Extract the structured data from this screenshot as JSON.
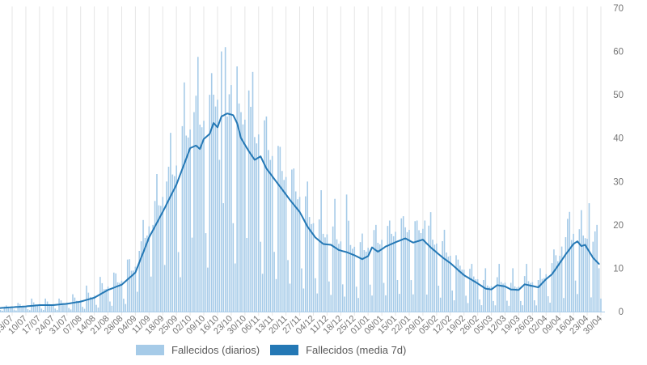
{
  "chart": {
    "legend": {
      "daily_label": "Fallecidos (diarios)",
      "media_label": "Fallecidos (media 7d)"
    }
  },
  "chart_data": {
    "type": "bar+line",
    "title": "",
    "xlabel": "",
    "ylabel": "",
    "y_axis_side": "right",
    "ylim": [
      0,
      70
    ],
    "y_ticks": [
      0,
      10,
      20,
      30,
      40,
      50,
      60,
      70
    ],
    "grid": "vertical-only",
    "legend_position": "bottom",
    "x_tick_labels": [
      "03/07",
      "10/07",
      "17/07",
      "24/07",
      "31/07",
      "07/08",
      "14/08",
      "21/08",
      "28/08",
      "04/09",
      "11/09",
      "18/09",
      "25/09",
      "02/10",
      "09/10",
      "16/10",
      "23/10",
      "30/10",
      "06/11",
      "13/11",
      "20/11",
      "27/11",
      "04/12",
      "11/12",
      "18/12",
      "25/12",
      "01/01",
      "08/01",
      "15/01",
      "22/01",
      "29/01",
      "05/02",
      "12/02",
      "19/02",
      "26/02",
      "05/03",
      "12/03",
      "19/03",
      "26/03",
      "02/04",
      "09/04",
      "16/04",
      "23/04",
      "30/04"
    ],
    "days_per_tick": 7,
    "num_days": 309,
    "series": [
      {
        "name": "Fallecidos (diarios)",
        "type": "bar"
      },
      {
        "name": "Fallecidos (media 7d)",
        "type": "line"
      }
    ],
    "media7d_anchors": [
      [
        0,
        0.8
      ],
      [
        7,
        1.0
      ],
      [
        14,
        1.2
      ],
      [
        21,
        1.5
      ],
      [
        28,
        1.5
      ],
      [
        35,
        1.8
      ],
      [
        42,
        2.3
      ],
      [
        49,
        3.2
      ],
      [
        56,
        5.0
      ],
      [
        63,
        6.2
      ],
      [
        70,
        9.0
      ],
      [
        77,
        17.1
      ],
      [
        84,
        23.0
      ],
      [
        91,
        29.3
      ],
      [
        98,
        37.7
      ],
      [
        101,
        38.3
      ],
      [
        103,
        37.5
      ],
      [
        105,
        39.8
      ],
      [
        108,
        41.0
      ],
      [
        110,
        43.5
      ],
      [
        112,
        42.5
      ],
      [
        114,
        45.0
      ],
      [
        117,
        45.7
      ],
      [
        120,
        45.3
      ],
      [
        122,
        43.5
      ],
      [
        124,
        40.0
      ],
      [
        128,
        37.0
      ],
      [
        131,
        35.0
      ],
      [
        134,
        35.8
      ],
      [
        137,
        33.0
      ],
      [
        142,
        30.0
      ],
      [
        147,
        27.0
      ],
      [
        150,
        25.2
      ],
      [
        154,
        23.0
      ],
      [
        158,
        19.6
      ],
      [
        162,
        17.1
      ],
      [
        166,
        15.6
      ],
      [
        170,
        15.4
      ],
      [
        174,
        14.2
      ],
      [
        178,
        13.7
      ],
      [
        182,
        13.0
      ],
      [
        186,
        12.1
      ],
      [
        189,
        12.8
      ],
      [
        191,
        14.8
      ],
      [
        194,
        13.8
      ],
      [
        198,
        15.0
      ],
      [
        203,
        16.0
      ],
      [
        208,
        16.9
      ],
      [
        212,
        15.9
      ],
      [
        217,
        16.6
      ],
      [
        221,
        14.8
      ],
      [
        227,
        12.5
      ],
      [
        231,
        11.2
      ],
      [
        238,
        8.4
      ],
      [
        245,
        6.5
      ],
      [
        249,
        5.3
      ],
      [
        252,
        5.1
      ],
      [
        255,
        6.1
      ],
      [
        259,
        5.8
      ],
      [
        262,
        5.1
      ],
      [
        266,
        5.0
      ],
      [
        269,
        6.3
      ],
      [
        273,
        5.9
      ],
      [
        276,
        5.6
      ],
      [
        280,
        7.5
      ],
      [
        283,
        8.6
      ],
      [
        287,
        11.2
      ],
      [
        290,
        13.2
      ],
      [
        294,
        15.6
      ],
      [
        296,
        16.2
      ],
      [
        298,
        15.1
      ],
      [
        300,
        15.4
      ],
      [
        301,
        14.6
      ],
      [
        304,
        12.4
      ],
      [
        307,
        11.0
      ]
    ],
    "weekly_pattern": [
      1.15,
      0.45,
      0.25,
      1.3,
      1.55,
      1.15,
      1.1
    ],
    "bar_overrides": {
      "10": 2,
      "17": 3,
      "24": 3,
      "31": 3,
      "38": 4,
      "45": 6,
      "48": 3,
      "52": 8,
      "59": 9,
      "66": 12,
      "72": 14,
      "79": 20,
      "86": 30,
      "98": 42,
      "100": 46,
      "105": 44,
      "108": 50,
      "109": 55,
      "113": 35,
      "114": 60,
      "115": 25,
      "116": 61,
      "117": 45,
      "123": 48,
      "128": 51,
      "137": 45,
      "144": 38,
      "151": 33,
      "158": 30,
      "165": 28,
      "172": 26,
      "178": 27,
      "186": 18,
      "193": 20,
      "200": 21,
      "207": 22,
      "214": 21,
      "218": 21,
      "235": 12,
      "242": 11,
      "249": 10,
      "256": 11,
      "263": 10,
      "270": 11,
      "277": 10,
      "285": 13,
      "288": 15,
      "292": 23,
      "297": 19,
      "302": 25,
      "306": 20,
      "307": 10,
      "308": 3
    },
    "bar_max": 61,
    "colors": {
      "bar": "#a6cbe8",
      "line": "#2478b5",
      "grid": "#e5e5e5",
      "axis_line": "#a9cce9",
      "tick_text": "#757575",
      "legend_text": "#595959"
    }
  }
}
